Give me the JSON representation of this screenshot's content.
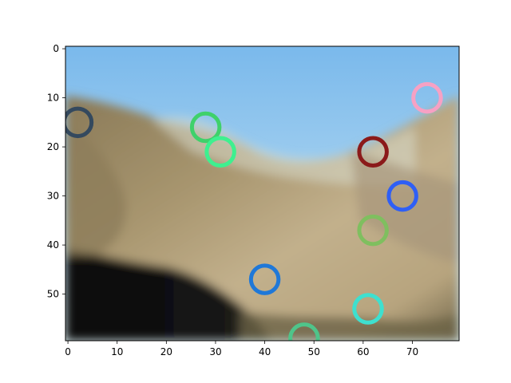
{
  "image": {
    "description_type": "pixelated photo of a rocky mountain ridge under blue sky, rendered in a matplotlib imshow axes",
    "sky_colors": [
      "#7ab9ec",
      "#a9d3ef",
      "#d8ecef"
    ],
    "rock_colors": [
      "#8a7a58",
      "#a8966f",
      "#c2b08c",
      "#b7a47e",
      "#6e6348"
    ],
    "shadow_color": "#0a0a0c"
  },
  "axes": {
    "x_ticks": [
      "0",
      "10",
      "20",
      "30",
      "40",
      "50",
      "60",
      "70"
    ],
    "y_ticks": [
      "0",
      "10",
      "20",
      "30",
      "40",
      "50"
    ],
    "xlim": [
      -0.5,
      79.5
    ],
    "ylim": [
      59.5,
      -0.5
    ]
  },
  "markers": [
    {
      "name": "dark-arc-marker",
      "x": 2,
      "y": 15,
      "r": 2.8,
      "color": "#34495e",
      "partial": "left-clip"
    },
    {
      "name": "green-ring-marker",
      "x": 28,
      "y": 16,
      "r": 2.8,
      "color": "#3fd16b",
      "partial": "none"
    },
    {
      "name": "aqua-ring-marker",
      "x": 31,
      "y": 21,
      "r": 2.8,
      "color": "#3ef08f",
      "partial": "none"
    },
    {
      "name": "pink-ring-marker",
      "x": 73,
      "y": 10,
      "r": 2.8,
      "color": "#f7a1c4",
      "partial": "none"
    },
    {
      "name": "dark-red-ring-marker",
      "x": 62,
      "y": 21,
      "r": 2.8,
      "color": "#8b1a1a",
      "partial": "none"
    },
    {
      "name": "blue-ring-marker",
      "x": 68,
      "y": 30,
      "r": 2.8,
      "color": "#2f5ff5",
      "partial": "none"
    },
    {
      "name": "olive-green-ring-marker",
      "x": 62,
      "y": 37,
      "r": 2.8,
      "color": "#7fbf5f",
      "partial": "none"
    },
    {
      "name": "mid-blue-ring-marker",
      "x": 40,
      "y": 47,
      "r": 2.8,
      "color": "#1f78d8",
      "partial": "none"
    },
    {
      "name": "cyan-ring-marker",
      "x": 61,
      "y": 53,
      "r": 2.8,
      "color": "#3ee0cf",
      "partial": "none"
    },
    {
      "name": "teal-arc-marker",
      "x": 48,
      "y": 59,
      "r": 2.8,
      "color": "#4fc48a",
      "partial": "bottom-clip"
    }
  ]
}
